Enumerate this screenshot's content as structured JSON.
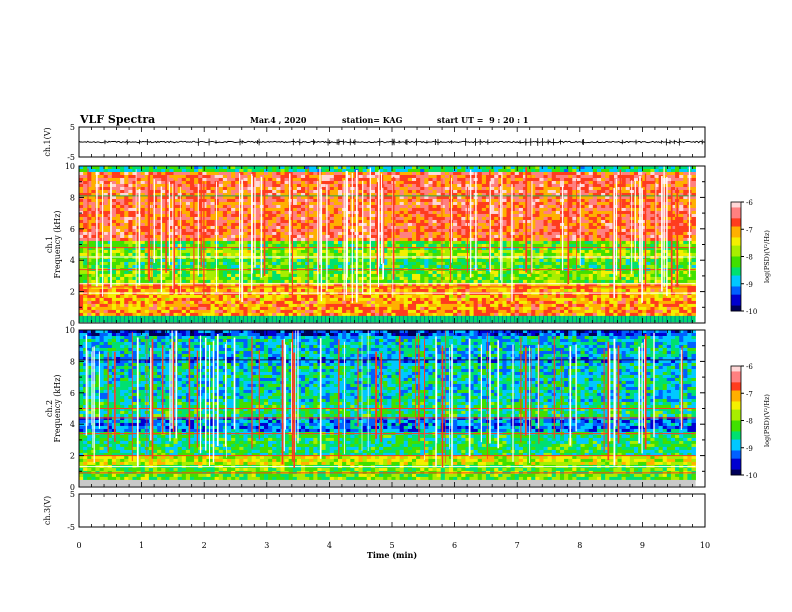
{
  "header": {
    "title": "VLF Spectra",
    "date": "Mar.4 , 2020",
    "station": "station= KAG",
    "start": "start UT =  9 : 20 : 1"
  },
  "chart_data": [
    {
      "type": "line",
      "panel": "ch1-waveform",
      "ylabel": "ch.1(V)",
      "ylim": [
        -5,
        5
      ],
      "yticks": [
        "5",
        "-5"
      ],
      "x": [
        0,
        10
      ],
      "series": [
        {
          "values": [
            0,
            0
          ]
        }
      ]
    },
    {
      "type": "heatmap",
      "panel": "ch1-spectrogram",
      "ylabel": "ch.1\nFrequency (kHz)",
      "ylim": [
        0,
        10
      ],
      "yticks": [
        "0",
        "2",
        "4",
        "6",
        "8",
        "10"
      ],
      "xlim": [
        0,
        9.85
      ],
      "colorbar": {
        "label": "log(PSD)(V²/Hz)",
        "range": [
          -10,
          -6
        ],
        "ticks": [
          "-6",
          "-7",
          "-8",
          "-9",
          "-10"
        ]
      }
    },
    {
      "type": "heatmap",
      "panel": "ch2-spectrogram",
      "ylabel": "ch.2\nFrequency (kHz)",
      "ylim": [
        0,
        10
      ],
      "yticks": [
        "0",
        "2",
        "4",
        "6",
        "8",
        "10"
      ],
      "xlim": [
        0,
        9.85
      ],
      "colorbar": {
        "label": "log(PSD)(V²/Hz)",
        "range": [
          -10,
          -6
        ],
        "ticks": [
          "-6",
          "-7",
          "-8",
          "-9",
          "-10"
        ]
      }
    },
    {
      "type": "line",
      "panel": "ch3-waveform",
      "ylabel": "ch.3(V)",
      "ylim": [
        -5,
        5
      ],
      "yticks": [
        "5",
        "-5"
      ],
      "series": []
    }
  ],
  "xaxis": {
    "label": "Time (min)",
    "range": [
      0,
      10
    ],
    "ticks": [
      "0",
      "1",
      "2",
      "3",
      "4",
      "5",
      "6",
      "7",
      "8",
      "9",
      "10"
    ]
  },
  "colors": {
    "colormap": [
      "#00005a",
      "#0000d0",
      "#0060ff",
      "#00c8ff",
      "#00e070",
      "#40e000",
      "#a8ee00",
      "#f4f000",
      "#ffb000",
      "#ff3c1e",
      "#ff8080",
      "#ffd7d7"
    ]
  }
}
